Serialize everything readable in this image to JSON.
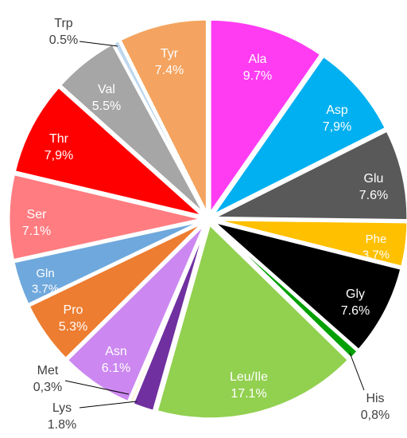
{
  "chart_data": {
    "type": "pie",
    "title": "",
    "legend": "none",
    "slices": [
      {
        "label": "Ala",
        "value": 9.7,
        "value_label": "9.7%",
        "color": "#FF3CF2",
        "text_color": "#ffffff"
      },
      {
        "label": "Asp",
        "value": 7.9,
        "value_label": "7,9%",
        "color": "#00B0F0",
        "text_color": "#ffffff"
      },
      {
        "label": "Glu",
        "value": 7.6,
        "value_label": "7.6%",
        "color": "#595959",
        "text_color": "#ffffff"
      },
      {
        "label": "Phe",
        "value": 3.7,
        "value_label": "3.7%",
        "color": "#FFC000",
        "text_color": "#ffffff"
      },
      {
        "label": "Gly",
        "value": 7.6,
        "value_label": "7.6%",
        "color": "#000000",
        "text_color": "#ffffff"
      },
      {
        "label": "His",
        "value": 0.8,
        "value_label": "0,8%",
        "color": "#00A000",
        "text_color": "#404040"
      },
      {
        "label": "Leu/Ile",
        "value": 17.1,
        "value_label": "17.1%",
        "color": "#92D050",
        "text_color": "#ffffff"
      },
      {
        "label": "Lys",
        "value": 1.8,
        "value_label": "1.8%",
        "color": "#7030A0",
        "text_color": "#404040"
      },
      {
        "label": "Met",
        "value": 0.3,
        "value_label": "0,3%",
        "color": "#FFF2CC",
        "text_color": "#404040"
      },
      {
        "label": "Asn",
        "value": 6.1,
        "value_label": "6.1%",
        "color": "#CC88F0",
        "text_color": "#ffffff"
      },
      {
        "label": "Pro",
        "value": 5.3,
        "value_label": "5.3%",
        "color": "#ED7D31",
        "text_color": "#ffffff"
      },
      {
        "label": "Gln",
        "value": 3.7,
        "value_label": "3.7%",
        "color": "#6FA8DC",
        "text_color": "#ffffff"
      },
      {
        "label": "Ser",
        "value": 7.1,
        "value_label": "7.1%",
        "color": "#FF7C80",
        "text_color": "#ffffff"
      },
      {
        "label": "Thr",
        "value": 7.9,
        "value_label": "7,9%",
        "color": "#FF0000",
        "text_color": "#ffffff"
      },
      {
        "label": "Val",
        "value": 5.5,
        "value_label": "5.5%",
        "color": "#A6A6A6",
        "text_color": "#ffffff"
      },
      {
        "label": "Trp",
        "value": 0.5,
        "value_label": "0.5%",
        "color": "#BDD7EE",
        "text_color": "#404040"
      },
      {
        "label": "Tyr",
        "value": 7.4,
        "value_label": "7.4%",
        "color": "#F4A460",
        "text_color": "#ffffff"
      }
    ]
  }
}
